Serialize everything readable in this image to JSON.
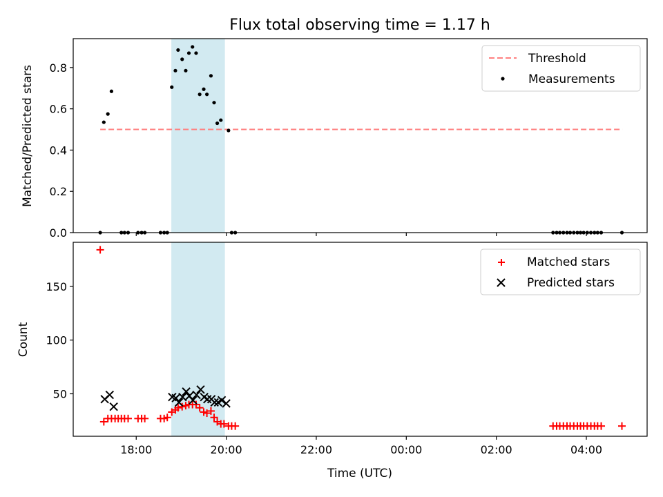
{
  "chart_data": {
    "title": "Flux total observing time = 1.17 h",
    "xlabel": "Time (UTC)",
    "x_unit": "hours since 00:00 UTC of the observing night start",
    "x_ticks": [
      {
        "value": 18,
        "label": "18:00"
      },
      {
        "value": 20,
        "label": "20:00"
      },
      {
        "value": 22,
        "label": "22:00"
      },
      {
        "value": 24,
        "label": "00:00"
      },
      {
        "value": 26,
        "label": "02:00"
      },
      {
        "value": 28,
        "label": "04:00"
      }
    ],
    "xlim": [
      16.6,
      29.35
    ],
    "highlight_span": [
      18.78,
      19.97
    ],
    "highlight_color": "#add8e6",
    "panels": [
      {
        "type": "scatter",
        "ylabel": "Matched/Predicted stars",
        "ylim": [
          0,
          0.94
        ],
        "y_ticks": [
          "0.0",
          "0.2",
          "0.4",
          "0.6",
          "0.8"
        ],
        "y_tick_values": [
          0,
          0.2,
          0.4,
          0.6,
          0.8
        ],
        "legend_position": "upper right",
        "series": [
          {
            "name": "Threshold",
            "type": "line",
            "style": "dashed",
            "color": "#ff7f7f",
            "x": [
              17.2,
              28.8
            ],
            "y": [
              0.5,
              0.5
            ]
          },
          {
            "name": "Measurements",
            "type": "scatter",
            "marker": "dot",
            "color": "#000000",
            "x": [
              17.2,
              17.28,
              17.37,
              17.45,
              17.67,
              17.74,
              17.82,
              18.04,
              18.12,
              18.19,
              18.54,
              18.62,
              18.69,
              18.79,
              18.87,
              18.93,
              19.02,
              19.1,
              19.17,
              19.25,
              19.33,
              19.41,
              19.5,
              19.57,
              19.66,
              19.73,
              19.8,
              19.88,
              20.05,
              20.12,
              20.2,
              27.26,
              27.34,
              27.41,
              27.49,
              27.57,
              27.64,
              27.72,
              27.8,
              27.87,
              27.94,
              28.02,
              28.1,
              28.18,
              28.25,
              28.33,
              28.79
            ],
            "y": [
              0,
              0.535,
              0.575,
              0.685,
              0,
              0,
              0,
              0,
              0,
              0,
              0,
              0,
              0,
              0.705,
              0.785,
              0.885,
              0.84,
              0.785,
              0.87,
              0.9,
              0.87,
              0.67,
              0.695,
              0.67,
              0.76,
              0.63,
              0.53,
              0.545,
              0.495,
              0,
              0,
              0,
              0,
              0,
              0,
              0,
              0,
              0,
              0,
              0,
              0,
              0,
              0,
              0,
              0,
              0,
              0
            ]
          }
        ]
      },
      {
        "type": "scatter",
        "ylabel": "Count",
        "ylim": [
          10.5,
          191
        ],
        "y_ticks": [
          "50",
          "100",
          "150"
        ],
        "y_tick_values": [
          50,
          100,
          150
        ],
        "legend_position": "upper right",
        "series": [
          {
            "name": "Matched stars",
            "type": "scatter",
            "marker": "plus",
            "color": "#ff0000",
            "x": [
              17.2,
              17.28,
              17.37,
              17.45,
              17.53,
              17.6,
              17.67,
              17.74,
              17.82,
              18.04,
              18.12,
              18.19,
              18.54,
              18.62,
              18.69,
              18.79,
              18.87,
              18.93,
              19.02,
              19.1,
              19.17,
              19.25,
              19.33,
              19.41,
              19.5,
              19.57,
              19.66,
              19.73,
              19.8,
              19.88,
              19.95,
              20.05,
              20.12,
              20.2,
              27.26,
              27.34,
              27.41,
              27.49,
              27.57,
              27.64,
              27.72,
              27.8,
              27.87,
              27.94,
              28.02,
              28.1,
              28.18,
              28.25,
              28.33,
              28.79
            ],
            "y": [
              184,
              24,
              27,
              27,
              27,
              27,
              27,
              27,
              27,
              27,
              27,
              27,
              27,
              27,
              28,
              33,
              35,
              37,
              38,
              39,
              40,
              40,
              40,
              37,
              33,
              32,
              34,
              28,
              24,
              22,
              22,
              20,
              20,
              20,
              20,
              20,
              20,
              20,
              20,
              20,
              20,
              20,
              20,
              20,
              20,
              20,
              20,
              20,
              20,
              20
            ]
          },
          {
            "name": "Predicted stars",
            "type": "scatter",
            "marker": "x",
            "color": "#000000",
            "x": [
              17.3,
              17.41,
              17.5,
              18.8,
              18.88,
              18.95,
              19.03,
              19.11,
              19.18,
              19.26,
              19.34,
              19.43,
              19.51,
              19.58,
              19.67,
              19.74,
              19.82,
              19.9,
              20.0
            ],
            "y": [
              45,
              49,
              38,
              47,
              46,
              42,
              47,
              52,
              48,
              44,
              49,
              54,
              47,
              45,
              45,
              42,
              42,
              44,
              41
            ]
          }
        ]
      }
    ]
  }
}
